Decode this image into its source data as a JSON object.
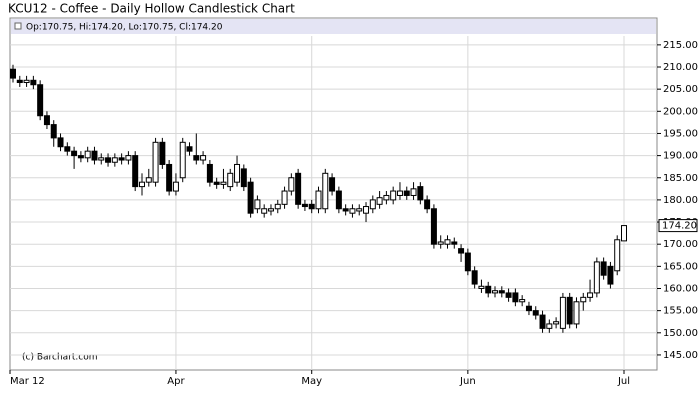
{
  "chart_data": {
    "type": "candlestick",
    "title": "KCU12 - Coffee - Daily Hollow Candlestick Chart",
    "info": "Op:170.75, Hi:174.20, Lo:170.75, Cl:174.20",
    "credit": "(c) Barchart.com",
    "last_price_label": "174.20",
    "up_color": "#ffffff",
    "down_color": "#000000",
    "edge_color": "#000000",
    "categories": [
      "Mar 12",
      null,
      null,
      null,
      null,
      null,
      null,
      null,
      null,
      null,
      null,
      null,
      null,
      null,
      null,
      null,
      null,
      null,
      null,
      null,
      null,
      null,
      null,
      null,
      "Apr",
      null,
      null,
      null,
      null,
      null,
      null,
      null,
      null,
      null,
      null,
      null,
      null,
      null,
      null,
      null,
      null,
      null,
      null,
      null,
      "May",
      null,
      null,
      null,
      null,
      null,
      null,
      null,
      null,
      null,
      null,
      null,
      null,
      null,
      null,
      null,
      null,
      null,
      null,
      null,
      null,
      null,
      null,
      "Jun",
      null,
      null,
      null,
      null,
      null,
      null,
      null,
      null,
      null,
      null,
      null,
      null,
      null,
      null,
      null,
      null,
      null,
      null,
      null,
      null,
      null,
      null,
      "Jul"
    ],
    "open": [
      209.5,
      207,
      206.5,
      207,
      206,
      199,
      197,
      194,
      192,
      191,
      190,
      189.5,
      191,
      189,
      189.5,
      188.5,
      189.5,
      189,
      190,
      183,
      184,
      184,
      193,
      188,
      182,
      185,
      192,
      190,
      189,
      188,
      184,
      183.5,
      183,
      184,
      187,
      184,
      178,
      177,
      177.5,
      178,
      179,
      182,
      186,
      179,
      179,
      178,
      178,
      185,
      182,
      178,
      177,
      177.5,
      177,
      178,
      179,
      180,
      180,
      181,
      182,
      181,
      183,
      180,
      178,
      170,
      170,
      170.5,
      169,
      168,
      164,
      160,
      160.5,
      159,
      159.5,
      159,
      159,
      157,
      156,
      155,
      154,
      151,
      152,
      151,
      158,
      152,
      157,
      158,
      159,
      166,
      165,
      164,
      170.75
    ],
    "high": [
      210.5,
      208,
      208,
      208,
      207,
      200,
      198,
      195,
      193,
      192,
      191,
      192,
      192,
      190.5,
      190.5,
      190.5,
      190.5,
      191,
      191,
      186,
      187,
      194,
      194,
      189,
      186,
      194,
      193,
      195,
      191,
      189,
      185,
      187,
      187,
      190,
      188,
      185,
      181,
      179,
      179,
      180,
      183,
      186,
      187,
      180,
      180,
      183,
      187,
      186,
      183,
      179,
      179,
      179,
      179.5,
      181,
      182,
      182,
      183,
      184,
      183,
      184,
      184,
      181,
      179,
      172,
      172,
      171.5,
      170,
      169,
      165,
      162,
      161.5,
      160.5,
      160.5,
      160,
      160,
      158.5,
      157,
      156,
      155,
      153,
      153.5,
      159,
      159,
      158,
      159,
      162,
      167,
      167,
      166,
      172,
      174.2
    ],
    "low": [
      206.5,
      205.5,
      205.5,
      205,
      198,
      196,
      192,
      191,
      190,
      187,
      188.5,
      188.5,
      188,
      188,
      187.5,
      187.5,
      188,
      188,
      182,
      181,
      183,
      183,
      187,
      181,
      181,
      184,
      190,
      188,
      188,
      183,
      182.5,
      182.5,
      182,
      183,
      182,
      176,
      177,
      176,
      176.5,
      177,
      178,
      181,
      178,
      177.5,
      177,
      177,
      177,
      181,
      177,
      176.5,
      176,
      176.5,
      175,
      177,
      178,
      179,
      179,
      180,
      180,
      180,
      179,
      177,
      169,
      169,
      169,
      169,
      166,
      163,
      160,
      159,
      158,
      158,
      158,
      157,
      156,
      156,
      154,
      153,
      150,
      150,
      151,
      150,
      151,
      151,
      155,
      157,
      158,
      162,
      160,
      163,
      170.75
    ],
    "close": [
      207.5,
      206.5,
      207,
      206,
      199,
      197,
      194,
      192,
      191,
      190,
      189.5,
      191,
      189,
      189.5,
      188.5,
      189.5,
      189,
      190,
      183,
      184,
      185,
      193,
      188,
      182,
      184,
      193,
      191,
      189,
      190,
      184,
      183.5,
      184,
      186,
      188,
      183,
      177,
      180,
      178,
      178,
      179,
      182,
      185,
      179,
      178.5,
      178,
      182,
      186,
      182,
      178,
      177.5,
      178,
      178,
      178.5,
      180,
      180.5,
      181,
      182,
      182,
      181,
      182.5,
      180,
      178,
      170,
      170.5,
      171,
      170,
      168,
      164,
      161,
      160.5,
      159,
      159.5,
      159,
      158,
      157,
      157.5,
      155,
      154,
      151,
      152,
      152.5,
      158,
      152,
      157,
      158,
      159,
      166,
      163,
      161,
      171,
      174.2
    ],
    "ylim": [
      141.6,
      217
    ],
    "yticks": [
      {
        "value": 145,
        "label": "145.00"
      },
      {
        "value": 150,
        "label": "150.00"
      },
      {
        "value": 155,
        "label": "155.00"
      },
      {
        "value": 160,
        "label": "160.00"
      },
      {
        "value": 165,
        "label": "165.00"
      },
      {
        "value": 170,
        "label": "170.00"
      },
      {
        "value": 175,
        "label": "175.00"
      },
      {
        "value": 180,
        "label": "180.00"
      },
      {
        "value": 185,
        "label": "185.00"
      },
      {
        "value": 190,
        "label": "190.00"
      },
      {
        "value": 195,
        "label": "195.00"
      },
      {
        "value": 200,
        "label": "200.00"
      },
      {
        "value": 205,
        "label": "205.00"
      },
      {
        "value": 210,
        "label": "210.00"
      },
      {
        "value": 215,
        "label": "215.00"
      }
    ],
    "grid": true
  }
}
